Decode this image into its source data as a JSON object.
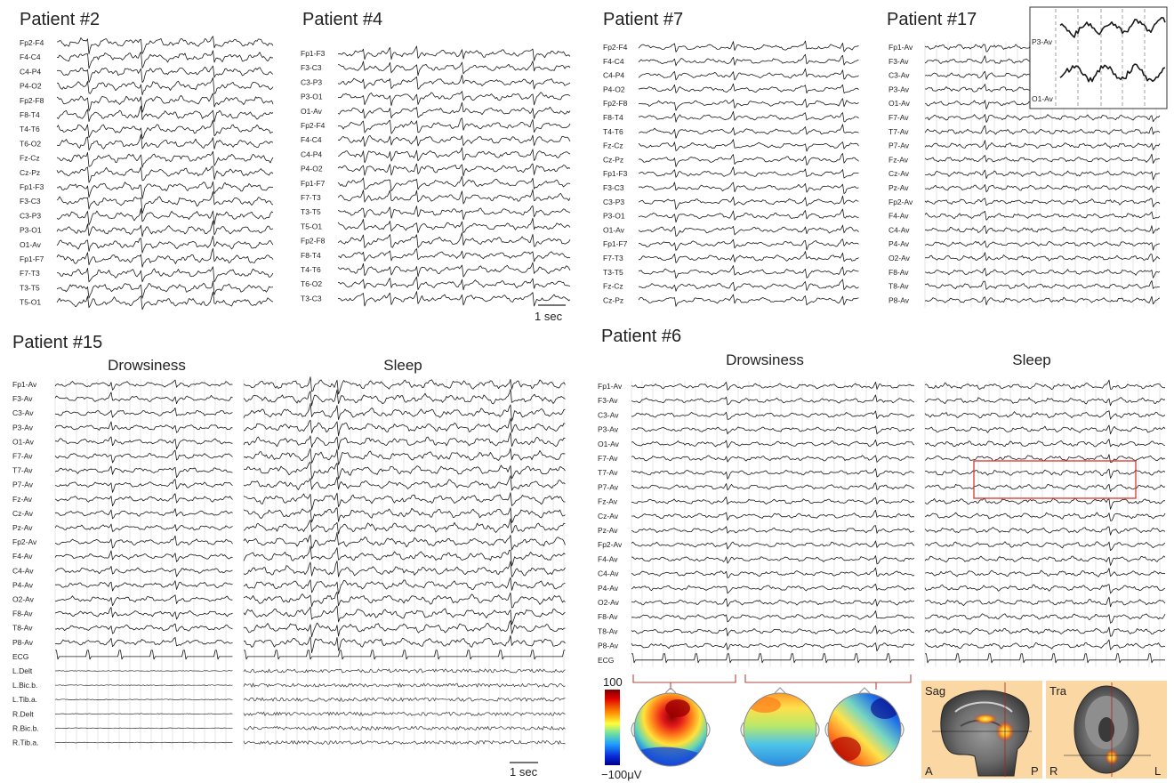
{
  "panels": [
    {
      "id": "p2",
      "title": "Patient #2",
      "channels": [
        "Fp2-F4",
        "F4-C4",
        "C4-P4",
        "P4-O2",
        "Fp2-F8",
        "F8-T4",
        "T4-T6",
        "T6-O2",
        "Fz-Cz",
        "Cz-Pz",
        "Fp1-F3",
        "F3-C3",
        "C3-P3",
        "P3-O1",
        "O1-Av",
        "Fp1-F7",
        "F7-T3",
        "T3-T5",
        "T5-O1"
      ]
    },
    {
      "id": "p4",
      "title": "Patient #4",
      "channels": [
        "Fp1-F3",
        "F3-C3",
        "C3-P3",
        "P3-O1",
        "O1-Av",
        "Fp2-F4",
        "F4-C4",
        "C4-P4",
        "P4-O2",
        "Fp1-F7",
        "F7-T3",
        "T3-T5",
        "T5-O1",
        "Fp2-F8",
        "F8-T4",
        "T4-T6",
        "T6-O2",
        "T3-C3"
      ],
      "scalebar": "1 sec"
    },
    {
      "id": "p7",
      "title": "Patient #7",
      "channels": [
        "Fp2-F4",
        "F4-C4",
        "C4-P4",
        "P4-O2",
        "Fp2-F8",
        "F8-T4",
        "T4-T6",
        "Fz-Cz",
        "Cz-Pz",
        "Fp1-F3",
        "F3-C3",
        "C3-P3",
        "P3-O1",
        "O1-Av",
        "Fp1-F7",
        "F7-T3",
        "T3-T5",
        "Fz-Cz",
        "Cz-Pz"
      ]
    },
    {
      "id": "p17",
      "title": "Patient #17",
      "channels": [
        "Fp1-Av",
        "F3-Av",
        "C3-Av",
        "P3-Av",
        "O1-Av",
        "F7-Av",
        "T7-Av",
        "P7-Av",
        "Fz-Av",
        "Cz-Av",
        "Pz-Av",
        "Fp2-Av",
        "F4-Av",
        "C4-Av",
        "P4-Av",
        "O2-Av",
        "F8-Av",
        "T8-Av",
        "P8-Av"
      ],
      "inset_labels": [
        "P3-Av",
        "O1-Av"
      ]
    },
    {
      "id": "p15",
      "title": "Patient #15",
      "subtitles": [
        "Drowsiness",
        "Sleep"
      ],
      "channels": [
        "Fp1-Av",
        "F3-Av",
        "C3-Av",
        "P3-Av",
        "O1-Av",
        "F7-Av",
        "T7-Av",
        "P7-Av",
        "Fz-Av",
        "Cz-Av",
        "Pz-Av",
        "Fp2-Av",
        "F4-Av",
        "C4-Av",
        "P4-Av",
        "O2-Av",
        "F8-Av",
        "T8-Av",
        "P8-Av",
        "ECG",
        "L.Delt",
        "L.Bic.b.",
        "L.Tib.a.",
        "R.Delt",
        "R.Bic.b.",
        "R.Tib.a."
      ],
      "scalebar": "1 sec"
    },
    {
      "id": "p6",
      "title": "Patient #6",
      "subtitles": [
        "Drowsiness",
        "Sleep"
      ],
      "channels": [
        "Fp1-Av",
        "F3-Av",
        "C3-Av",
        "P3-Av",
        "O1-Av",
        "F7-Av",
        "T7-Av",
        "P7-Av",
        "Fz-Av",
        "Cz-Av",
        "Pz-Av",
        "Fp2-Av",
        "F4-Av",
        "C4-Av",
        "P4-Av",
        "O2-Av",
        "F8-Av",
        "T8-Av",
        "P8-Av",
        "ECG"
      ]
    }
  ],
  "colorbar": {
    "max": "100",
    "min": "−100μV"
  },
  "mri": {
    "sag": {
      "label": "Sag",
      "left": "A",
      "right": "P"
    },
    "tra": {
      "label": "Tra",
      "left": "R",
      "right": "L"
    }
  },
  "colors": {
    "trace": "#1a1a1a",
    "highlight_box": "#d9362b",
    "bracket": "#b5443a",
    "mri_bg": "#fbd7a3"
  }
}
